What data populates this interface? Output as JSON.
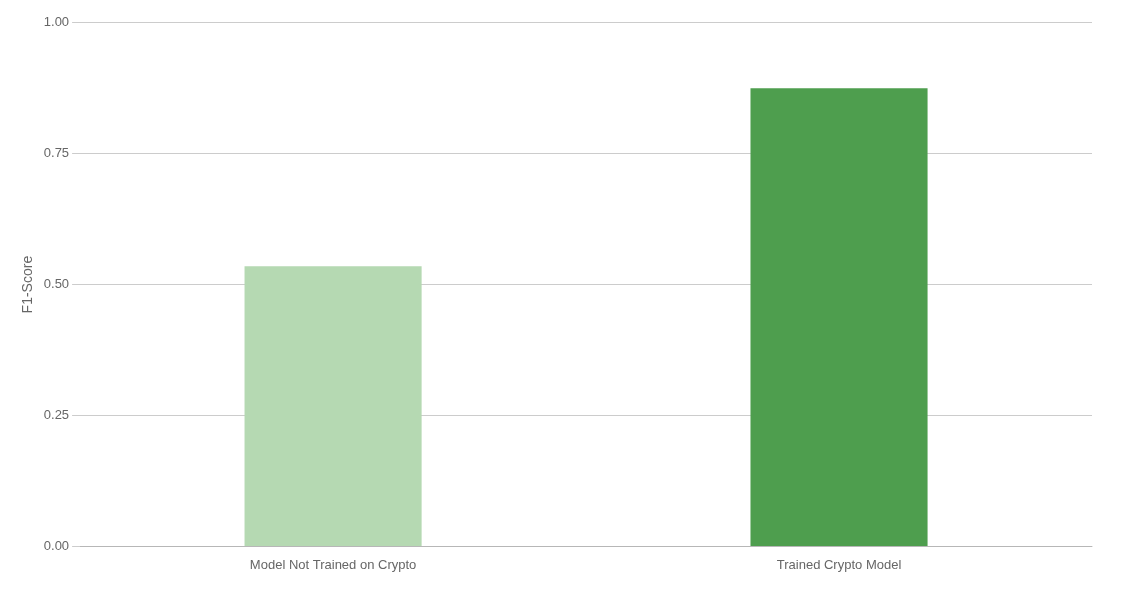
{
  "chart_data": {
    "type": "bar",
    "categories": [
      "Model Not Trained on Crypto",
      "Trained Crypto Model"
    ],
    "values": [
      0.535,
      0.875
    ],
    "colors": [
      "#b5d9b2",
      "#4e9e4e"
    ],
    "ylabel": "F1-Score",
    "ylim": [
      0,
      1.0
    ],
    "yticks": [
      {
        "value": 0,
        "label": "0.00"
      },
      0.25,
      {
        "value": 0.5,
        "label": "0.50"
      },
      0.75,
      {
        "value": 1.0,
        "label": "1.00"
      }
    ],
    "grid": true
  }
}
